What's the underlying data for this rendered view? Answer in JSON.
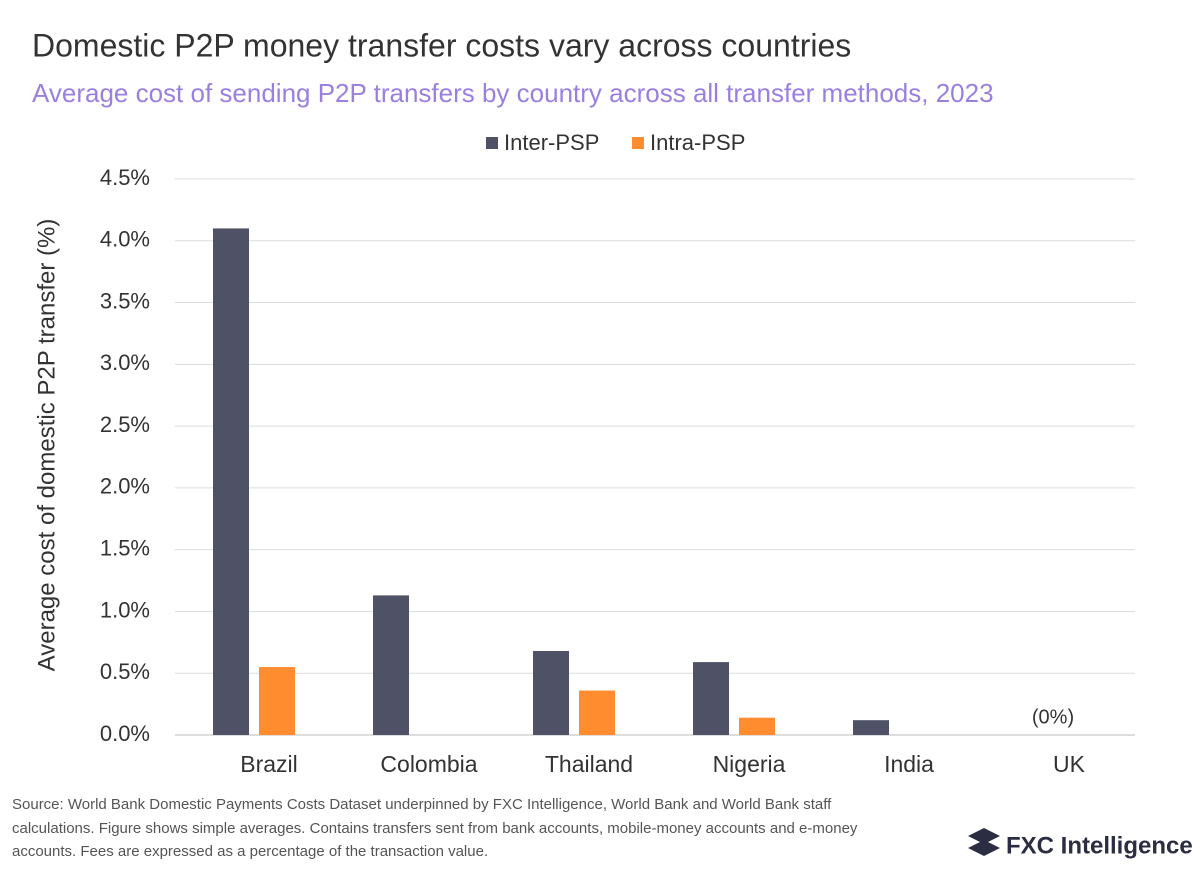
{
  "chart_data": {
    "type": "bar",
    "title": "Domestic P2P money transfer costs vary across countries",
    "subtitle": "Average cost of sending P2P transfers by country across all transfer methods, 2023",
    "y_label": "Average cost of domestic P2P transfer (%)",
    "categories": [
      "Brazil",
      "Colombia",
      "Thailand",
      "Nigeria",
      "India",
      "UK"
    ],
    "series": [
      {
        "name": "Inter-PSP",
        "color": "#4f5166",
        "values": [
          4.1,
          1.13,
          0.68,
          0.59,
          0.12,
          0
        ]
      },
      {
        "name": "Intra-PSP",
        "color": "#ff8c2e",
        "values": [
          0.55,
          null,
          0.36,
          0.14,
          null,
          null
        ]
      }
    ],
    "annotation": "(0%)",
    "ylim": [
      0,
      4.5
    ],
    "yticks": [
      {
        "value": 0,
        "label": "0.0%"
      },
      {
        "value": 0.5,
        "label": "0.5%"
      },
      {
        "value": 1,
        "label": "1.0%"
      },
      {
        "value": 1.5,
        "label": "1.5%"
      },
      {
        "value": 2,
        "label": "2.0%"
      },
      {
        "value": 2.5,
        "label": "2.5%"
      },
      {
        "value": 3,
        "label": "3.0%"
      },
      {
        "value": 3.5,
        "label": "3.5%"
      },
      {
        "value": 4,
        "label": "4.0%"
      },
      {
        "value": 4.5,
        "label": "4.5%"
      }
    ],
    "grid": true,
    "source": [
      "Source: World Bank Domestic Payments Costs Dataset underpinned by FXC Intelligence, World Bank and World Bank staff",
      "calculations. Figure shows simple averages. Contains transfers sent from bank accounts, mobile-money accounts and e-money",
      "accounts. Fees are expressed as a percentage of the transaction value."
    ],
    "logo": "FXC Intelligence"
  }
}
